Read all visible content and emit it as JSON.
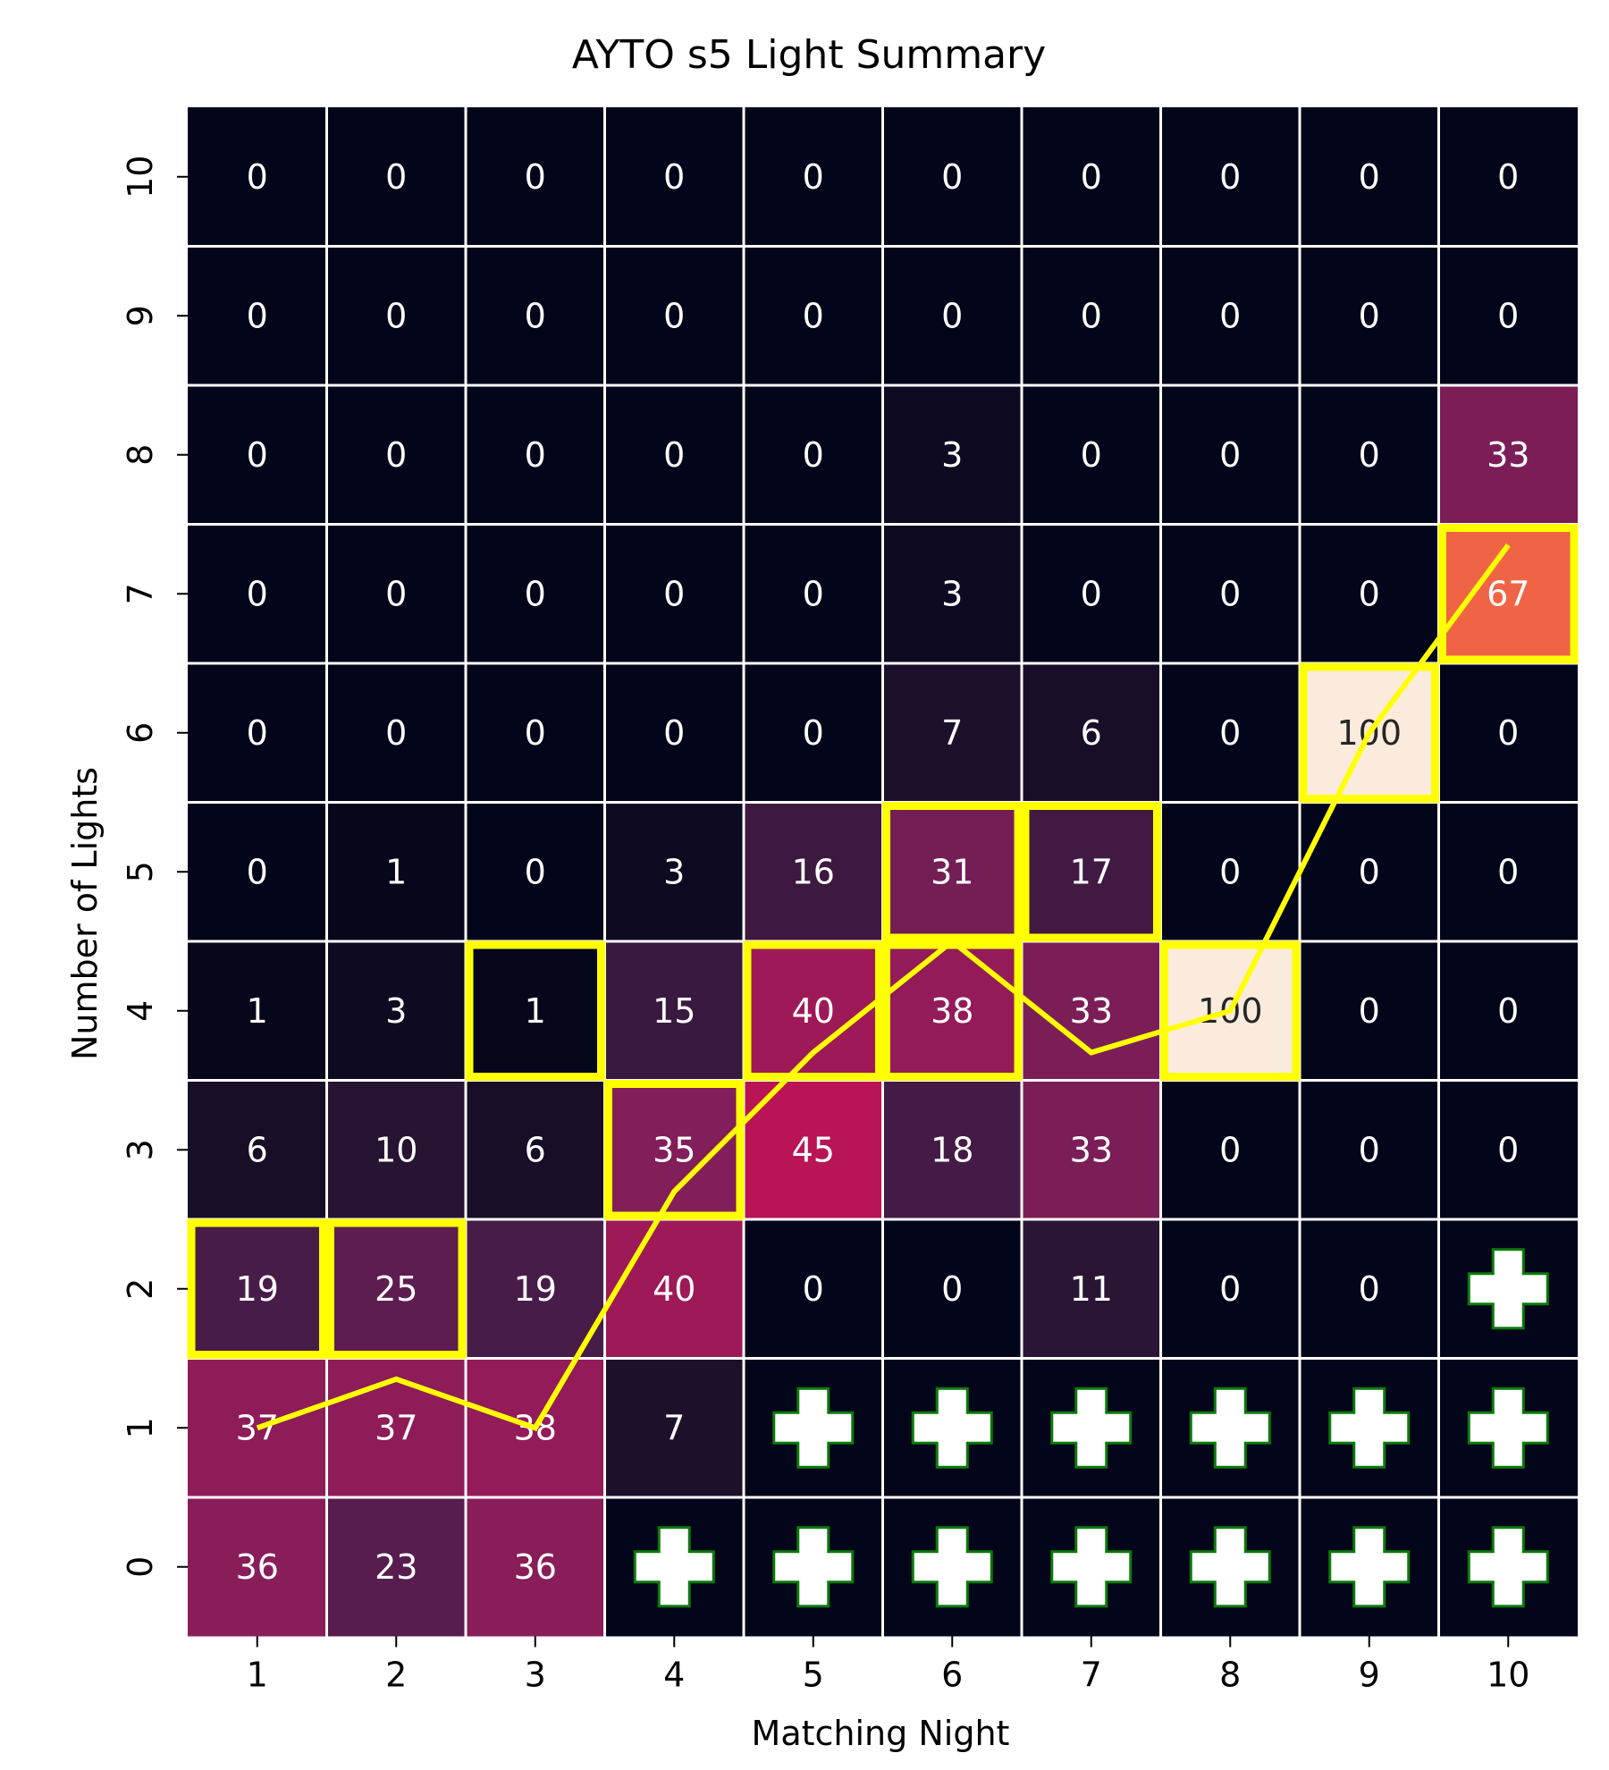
{
  "chart_data": {
    "type": "heatmap",
    "title": "AYTO s5 Light Summary",
    "xlabel": "Matching Night",
    "ylabel": "Number of Lights",
    "x": [
      "1",
      "2",
      "3",
      "4",
      "5",
      "6",
      "7",
      "8",
      "9",
      "10"
    ],
    "y": [
      "10",
      "9",
      "8",
      "7",
      "6",
      "5",
      "4",
      "3",
      "2",
      "1",
      "0"
    ],
    "values": [
      [
        0,
        0,
        0,
        0,
        0,
        0,
        0,
        0,
        0,
        0
      ],
      [
        0,
        0,
        0,
        0,
        0,
        0,
        0,
        0,
        0,
        0
      ],
      [
        0,
        0,
        0,
        0,
        0,
        3,
        0,
        0,
        0,
        33
      ],
      [
        0,
        0,
        0,
        0,
        0,
        3,
        0,
        0,
        0,
        67
      ],
      [
        0,
        0,
        0,
        0,
        0,
        7,
        6,
        0,
        100,
        0
      ],
      [
        0,
        1,
        0,
        3,
        16,
        31,
        17,
        0,
        0,
        0
      ],
      [
        1,
        3,
        1,
        15,
        40,
        38,
        33,
        100,
        0,
        0
      ],
      [
        6,
        10,
        6,
        35,
        45,
        18,
        33,
        0,
        0,
        0
      ],
      [
        19,
        25,
        19,
        40,
        0,
        0,
        11,
        0,
        0,
        null
      ],
      [
        37,
        37,
        38,
        7,
        null,
        null,
        null,
        null,
        null,
        null
      ],
      [
        36,
        23,
        36,
        null,
        null,
        null,
        null,
        null,
        null,
        null
      ]
    ],
    "crossed_cells_marker": "plus-icon",
    "highlighted_cells": [
      {
        "night": "1",
        "lights": "2"
      },
      {
        "night": "2",
        "lights": "2"
      },
      {
        "night": "3",
        "lights": "4"
      },
      {
        "night": "4",
        "lights": "3"
      },
      {
        "night": "5",
        "lights": "4"
      },
      {
        "night": "6",
        "lights": "5"
      },
      {
        "night": "6",
        "lights": "4"
      },
      {
        "night": "7",
        "lights": "5"
      },
      {
        "night": "8",
        "lights": "4"
      },
      {
        "night": "9",
        "lights": "6"
      },
      {
        "night": "10",
        "lights": "7"
      }
    ],
    "expected_lights_line": {
      "x": [
        1,
        2,
        3,
        4,
        5,
        6,
        7,
        8,
        9,
        10
      ],
      "y": [
        1.0,
        1.35,
        1.0,
        2.7,
        3.7,
        4.5,
        3.7,
        4.0,
        6.0,
        7.35
      ]
    },
    "colormap": "rocket",
    "colors": {
      "highlight": "#ffff00",
      "line": "#ffff00",
      "grid": "#ffffff",
      "plus_fill": "#ffffff",
      "plus_stroke": "#0a7a0a"
    },
    "grid": true
  }
}
